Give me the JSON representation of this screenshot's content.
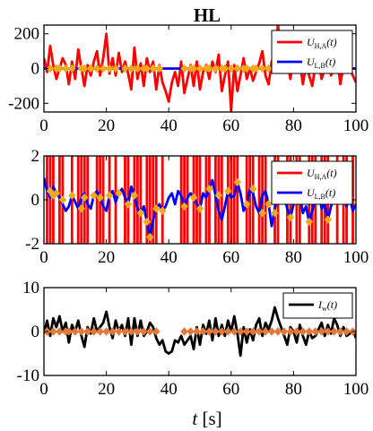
{
  "chart_data": [
    {
      "type": "line",
      "title": "HL",
      "xlim": [
        0,
        100
      ],
      "ylim": [
        -250,
        250
      ],
      "xticks": [
        "0",
        "20",
        "40",
        "60",
        "80",
        "100"
      ],
      "yticks": [
        "200",
        "0",
        "-200"
      ],
      "legend_position": "top-right",
      "legend": [
        {
          "base": "U",
          "sub": "H,A",
          "arg": "(t)",
          "color": "#ff0000"
        },
        {
          "base": "U",
          "sub": "L,B",
          "arg": "(t)",
          "color": "#0000ff"
        }
      ],
      "series": [
        {
          "color": "#ff0000",
          "x": [
            0,
            1,
            2,
            3,
            4,
            5,
            6,
            7,
            8,
            9,
            10,
            11,
            12,
            13,
            14,
            15,
            16,
            17,
            18,
            19,
            20,
            21,
            22,
            23,
            24,
            25,
            26,
            27,
            28,
            29,
            30,
            31,
            32,
            33,
            34,
            35,
            36,
            37,
            38,
            39,
            40,
            41,
            42,
            43,
            44,
            45,
            46,
            47,
            48,
            49,
            50,
            51,
            52,
            53,
            54,
            55,
            56,
            57,
            58,
            59,
            60,
            61,
            62,
            63,
            64,
            65,
            66,
            67,
            68,
            69,
            70,
            71,
            72,
            73,
            74,
            75,
            76,
            77,
            78,
            79,
            80,
            81,
            82,
            83,
            84,
            85,
            86,
            87,
            88,
            89,
            90,
            91,
            92,
            93,
            94,
            95,
            96,
            97,
            98,
            99,
            100
          ],
          "y": [
            60,
            -20,
            130,
            20,
            -60,
            0,
            60,
            20,
            -90,
            40,
            -60,
            110,
            0,
            -100,
            20,
            -40,
            40,
            100,
            -40,
            60,
            200,
            -30,
            60,
            -40,
            90,
            -20,
            40,
            -30,
            -120,
            120,
            -60,
            30,
            -100,
            60,
            -20,
            40,
            -120,
            20,
            -80,
            -130,
            -190,
            -80,
            -20,
            -100,
            40,
            -140,
            -60,
            20,
            -100,
            40,
            -120,
            -20,
            20,
            -60,
            40,
            -20,
            80,
            -130,
            -40,
            40,
            -240,
            20,
            -130,
            -40,
            60,
            -60,
            0,
            -70,
            -20,
            30,
            100,
            -40,
            -90,
            40,
            -20,
            260,
            0,
            100,
            40,
            -60,
            70,
            -20,
            40,
            -90,
            20,
            -40,
            -100,
            20,
            40,
            -60,
            0,
            80,
            -40,
            10,
            60,
            -90,
            20,
            40,
            0,
            -40,
            -80
          ]
        },
        {
          "color": "#0000ff",
          "x": [
            0,
            100
          ],
          "y": [
            0,
            0
          ]
        }
      ],
      "markers": {
        "color": "#f4a81d",
        "x": [
          2,
          4,
          5,
          7,
          9,
          12,
          13,
          15,
          17,
          19,
          21,
          23,
          26,
          28,
          30,
          32,
          33,
          35,
          37,
          45,
          47,
          48,
          50,
          52,
          53,
          55,
          57,
          58,
          60,
          62,
          64,
          65,
          67,
          68,
          70,
          72,
          74,
          76,
          78,
          80,
          82,
          84,
          86,
          88,
          90,
          92,
          94,
          96,
          98
        ],
        "y": 0
      }
    },
    {
      "type": "line",
      "xlim": [
        0,
        100
      ],
      "ylim": [
        -2,
        2
      ],
      "xticks": [
        "0",
        "20",
        "40",
        "60",
        "80",
        "100"
      ],
      "yticks": [
        "2",
        "0",
        "-2"
      ],
      "legend_position": "top-right",
      "legend": [
        {
          "base": "U",
          "sub": "H,A",
          "arg": "(t)",
          "color": "#ff0000"
        },
        {
          "base": "U",
          "sub": "L,B",
          "arg": "(t)",
          "color": "#0000ff"
        }
      ],
      "red_vertical_x": [
        1,
        2,
        3,
        5,
        6,
        9,
        11,
        12,
        13,
        14,
        17,
        18,
        19,
        21,
        23,
        26,
        27,
        29,
        30,
        31,
        33,
        34,
        35,
        36,
        38,
        44,
        45,
        46,
        48,
        49,
        50,
        52,
        53,
        55,
        56,
        57,
        59,
        60,
        61,
        62,
        65,
        66,
        67,
        69,
        70,
        71,
        74,
        75,
        78,
        79,
        81,
        82,
        85,
        86,
        87,
        89,
        90,
        91,
        94,
        96,
        97,
        99
      ],
      "series": [
        {
          "color": "#0000ff",
          "x": [
            0,
            1,
            2,
            3,
            4,
            5,
            6,
            7,
            8,
            9,
            10,
            11,
            12,
            13,
            14,
            15,
            16,
            17,
            18,
            19,
            20,
            21,
            22,
            23,
            24,
            25,
            26,
            27,
            28,
            29,
            30,
            31,
            32,
            33,
            34,
            35,
            36,
            37,
            38,
            39,
            40,
            41,
            42,
            43,
            44,
            45,
            46,
            47,
            48,
            49,
            50,
            51,
            52,
            53,
            54,
            55,
            56,
            57,
            58,
            59,
            60,
            61,
            62,
            63,
            64,
            65,
            66,
            67,
            68,
            69,
            70,
            71,
            72,
            73,
            74,
            75,
            76,
            77,
            78,
            79,
            80,
            81,
            82,
            83,
            84,
            85,
            86,
            87,
            88,
            89,
            90,
            91,
            92,
            93,
            94,
            95,
            96,
            97,
            98,
            99,
            100
          ],
          "y": [
            1.0,
            0.4,
            0.1,
            0.6,
            0.3,
            0.1,
            -0.2,
            -0.5,
            -0.3,
            0.2,
            -0.1,
            -0.4,
            0.1,
            0.3,
            -0.2,
            -0.4,
            0.2,
            0.4,
            0.1,
            -0.3,
            -0.5,
            0.2,
            0.4,
            -0.1,
            0.3,
            0.5,
            0.1,
            -0.2,
            0.6,
            0.2,
            -0.4,
            -0.6,
            -0.3,
            -1.0,
            -1.7,
            -0.9,
            -0.4,
            -0.2,
            -0.5,
            -0.3,
            0.1,
            0.3,
            -0.2,
            0.4,
            0.2,
            -0.3,
            0.1,
            0.3,
            0.1,
            -0.2,
            -0.4,
            0.3,
            0.1,
            0.5,
            0.9,
            0.2,
            -0.5,
            -0.9,
            -0.3,
            0.4,
            0.1,
            0.2,
            0.8,
            0.3,
            -0.5,
            -0.2,
            0.5,
            0.3,
            -0.3,
            -0.6,
            0.2,
            0.4,
            -0.2,
            -1.2,
            -0.4,
            0.3,
            0.6,
            0.1,
            -0.4,
            -0.8,
            -0.2,
            0.4,
            0.2,
            -0.6,
            -0.3,
            -1.0,
            -0.5,
            0.1,
            0.4,
            -0.4,
            -0.2,
            -0.9,
            -0.3,
            0.1,
            0.4,
            0.0,
            0.2,
            -0.3,
            0.1,
            -0.5,
            -0.2
          ]
        }
      ],
      "markers": {
        "color": "#f4a81d",
        "x": [
          2,
          3,
          4,
          6,
          9,
          12,
          13,
          16,
          18,
          21,
          24,
          27,
          29,
          31,
          33,
          34,
          36,
          38,
          45,
          48,
          50,
          53,
          56,
          59,
          62,
          65,
          67,
          70,
          72,
          74,
          76,
          79,
          82,
          85,
          88,
          91,
          94,
          96,
          98
        ],
        "y": [
          0.4,
          0.2,
          0.3,
          0.0,
          0.2,
          -0.4,
          0.1,
          0.2,
          0.1,
          0.2,
          0.3,
          -0.2,
          0.2,
          -0.6,
          -1.0,
          -1.7,
          -0.4,
          -0.5,
          -0.3,
          0.1,
          -0.4,
          0.5,
          0.2,
          0.4,
          0.8,
          -0.2,
          0.5,
          -0.6,
          -0.2,
          -0.6,
          0.6,
          -0.8,
          0.2,
          -1.0,
          0.4,
          -0.9,
          0.4,
          0.2,
          0.1
        ]
      }
    },
    {
      "type": "line",
      "xlim": [
        0,
        100
      ],
      "ylim": [
        -10,
        10
      ],
      "xticks": [
        "0",
        "20",
        "40",
        "60",
        "80",
        "100"
      ],
      "yticks": [
        "10",
        "0",
        "-10"
      ],
      "xlabel": {
        "base": "t",
        "unit": " [s]"
      },
      "legend_position": "top-right",
      "legend": [
        {
          "base": "I",
          "sub": "w",
          "arg": "(t)",
          "color": "#000000"
        }
      ],
      "series": [
        {
          "color": "#000000",
          "x": [
            0,
            1,
            2,
            3,
            4,
            5,
            6,
            7,
            8,
            9,
            10,
            11,
            12,
            13,
            14,
            15,
            16,
            17,
            18,
            19,
            20,
            21,
            22,
            23,
            24,
            25,
            26,
            27,
            28,
            29,
            30,
            31,
            32,
            33,
            34,
            35,
            36,
            37,
            38,
            39,
            40,
            41,
            42,
            43,
            44,
            45,
            46,
            47,
            48,
            49,
            50,
            51,
            52,
            53,
            54,
            55,
            56,
            57,
            58,
            59,
            60,
            61,
            62,
            63,
            64,
            65,
            66,
            67,
            68,
            69,
            70,
            71,
            72,
            73,
            74,
            75,
            76,
            77,
            78,
            79,
            80,
            81,
            82,
            83,
            84,
            85,
            86,
            87,
            88,
            89,
            90,
            91,
            92,
            93,
            94,
            95,
            96,
            97,
            98,
            99,
            100
          ],
          "y": [
            -0.5,
            2.5,
            -1,
            3,
            1,
            3.5,
            0,
            2,
            -2.5,
            1.5,
            0,
            2.5,
            -1,
            -3.5,
            1,
            -0.5,
            3,
            0,
            1,
            2,
            4.5,
            1,
            -1.5,
            2.5,
            0,
            1.5,
            -1,
            3,
            -3,
            3,
            -1,
            2.5,
            -1,
            0,
            2,
            1,
            -1.5,
            -3,
            -2,
            -4.5,
            -5,
            -4.5,
            -2,
            -2.5,
            -1,
            -3,
            -2,
            -1,
            -4,
            1,
            -3,
            1.5,
            -0.5,
            2.5,
            -2,
            3,
            -1,
            1.5,
            -1,
            2.5,
            0,
            3.5,
            -0.5,
            -5.5,
            1,
            -2.5,
            0.5,
            -2,
            1.5,
            3,
            -1,
            2,
            0.5,
            2.5,
            5.5,
            3,
            1,
            -1,
            -3,
            1,
            0,
            -2.5,
            1.5,
            -1,
            -3,
            0,
            -1.5,
            -1,
            0.5,
            2,
            -1,
            1.5,
            -0.5,
            3,
            1.5,
            -1,
            1,
            -1,
            -0.5,
            0.5,
            -1.5
          ]
        }
      ],
      "markers": {
        "color": "#e07a3a",
        "x": [
          1,
          3,
          5,
          7,
          8,
          10,
          12,
          14,
          16,
          18,
          20,
          22,
          24,
          26,
          28,
          30,
          32,
          34,
          36,
          45,
          47,
          49,
          51,
          53,
          55,
          57,
          59,
          61,
          63,
          65,
          67,
          69,
          71,
          73,
          75,
          77,
          79,
          81,
          83,
          85,
          87,
          89,
          91,
          93,
          95,
          97,
          99
        ],
        "y": 0
      }
    }
  ]
}
